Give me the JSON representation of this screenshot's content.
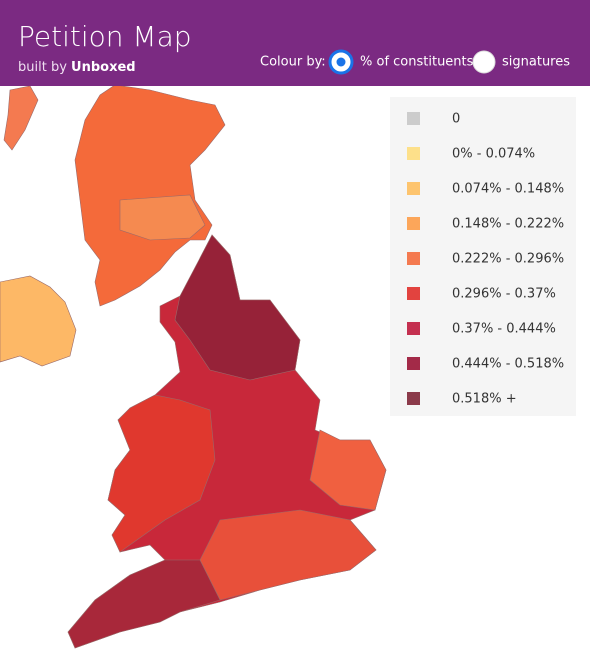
{
  "header": {
    "title": "Petition Map",
    "subtitle": "built by",
    "brand": "Unboxed"
  },
  "controls": {
    "label": "Colour by:",
    "options": [
      {
        "label": "% of constituents",
        "selected": true
      },
      {
        "label": "signatures",
        "selected": false
      }
    ]
  },
  "legend": [
    {
      "label": "0",
      "color": "#cccccc"
    },
    {
      "label": "0% - 0.074%",
      "color": "#fde08a"
    },
    {
      "label": "0.074% - 0.148%",
      "color": "#fdc46e"
    },
    {
      "label": "0.148% - 0.222%",
      "color": "#fca65a"
    },
    {
      "label": "0.222% - 0.296%",
      "color": "#f47a50"
    },
    {
      "label": "0.296% - 0.37%",
      "color": "#e2433f"
    },
    {
      "label": "0.37% - 0.444%",
      "color": "#c43050"
    },
    {
      "label": "0.444% - 0.518%",
      "color": "#a32a48"
    },
    {
      "label": "0.518% +",
      "color": "#8b3a4a"
    }
  ]
}
